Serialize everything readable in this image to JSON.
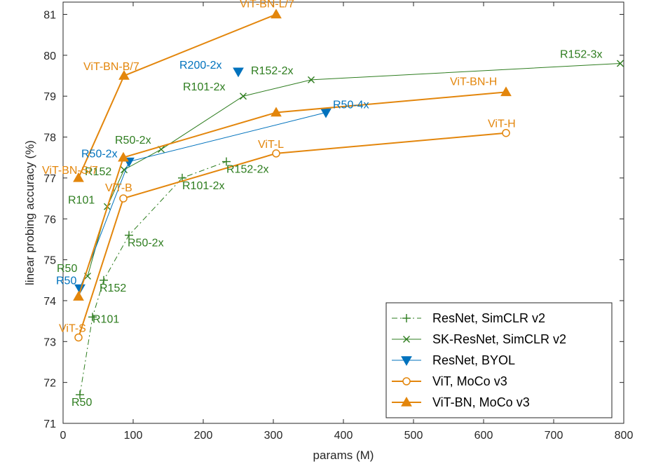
{
  "chart_data": {
    "type": "line",
    "title": "",
    "xlabel": "params (M)",
    "ylabel": "linear probing accuracy (%)",
    "xlim": [
      0,
      800
    ],
    "ylim": [
      71,
      81.3
    ],
    "xticks": [
      0,
      100,
      200,
      300,
      400,
      500,
      600,
      700,
      800
    ],
    "yticks": [
      71,
      72,
      73,
      74,
      75,
      76,
      77,
      78,
      79,
      80,
      81
    ],
    "grid": false,
    "legend_position": "bottom-right",
    "series": [
      {
        "name": "ResNet, SimCLR v2",
        "color": "#2e7d1f",
        "line_style": "dashdot",
        "marker": "plus",
        "points": [
          {
            "x": 24,
            "y": 71.7,
            "label": "R50"
          },
          {
            "x": 42,
            "y": 73.6,
            "label": "R101"
          },
          {
            "x": 58,
            "y": 74.5,
            "label": "R152"
          },
          {
            "x": 94,
            "y": 75.6,
            "label": "R50-2x"
          },
          {
            "x": 170,
            "y": 77.0,
            "label": "R101-2x"
          },
          {
            "x": 233,
            "y": 77.4,
            "label": "R152-2x"
          }
        ]
      },
      {
        "name": "SK-ResNet, SimCLR v2",
        "color": "#2e7d1f",
        "line_style": "solid",
        "marker": "x",
        "points": [
          {
            "x": 35,
            "y": 74.6,
            "label": "R50"
          },
          {
            "x": 63,
            "y": 76.3,
            "label": "R101"
          },
          {
            "x": 87,
            "y": 77.2,
            "label": "R152"
          },
          {
            "x": 140,
            "y": 77.7,
            "label": "R50-2x"
          },
          {
            "x": 257,
            "y": 79.0,
            "label": "R101-2x"
          },
          {
            "x": 354,
            "y": 79.4,
            "label": "R152-2x"
          },
          {
            "x": 795,
            "y": 79.8,
            "label": "R152-3x"
          }
        ]
      },
      {
        "name": "ResNet, BYOL",
        "color": "#0072bd",
        "line_style": "solid",
        "marker": "triangle-down",
        "points": [
          {
            "x": 24,
            "y": 74.3,
            "label": "R50"
          },
          {
            "x": 94,
            "y": 77.4,
            "label": "R50-2x"
          },
          {
            "x": 375,
            "y": 78.6,
            "label": "R50-4x"
          }
        ],
        "extra_points": [
          {
            "x": 250,
            "y": 79.6,
            "label": "R200-2x"
          }
        ]
      },
      {
        "name": "ViT, MoCo v3",
        "color": "#e3860c",
        "line_style": "solid",
        "marker": "circle",
        "points": [
          {
            "x": 22,
            "y": 73.1,
            "label": "ViT-S"
          },
          {
            "x": 86,
            "y": 76.5,
            "label": "ViT-B"
          },
          {
            "x": 304,
            "y": 77.6,
            "label": "ViT-L"
          },
          {
            "x": 632,
            "y": 78.1,
            "label": "ViT-H"
          }
        ]
      },
      {
        "name": "ViT-BN, MoCo v3",
        "color": "#e3860c",
        "line_style": "solid",
        "marker": "triangle-up",
        "points": [
          {
            "x": 22,
            "y": 74.1,
            "label": ""
          },
          {
            "x": 86,
            "y": 77.5,
            "label": ""
          },
          {
            "x": 304,
            "y": 78.6,
            "label": ""
          },
          {
            "x": 632,
            "y": 79.1,
            "label": "ViT-BN-H"
          }
        ]
      },
      {
        "name": "ViT-BN, MoCo v3 (/7 patch)",
        "color": "#e3860c",
        "line_style": "solid",
        "marker": "triangle-up",
        "in_legend": false,
        "points": [
          {
            "x": 22,
            "y": 77.0,
            "label": "ViT-BN-S/7"
          },
          {
            "x": 87,
            "y": 79.5,
            "label": "ViT-BN-B/7"
          },
          {
            "x": 304,
            "y": 81.0,
            "label": "ViT-BN-L/7"
          }
        ]
      }
    ]
  }
}
